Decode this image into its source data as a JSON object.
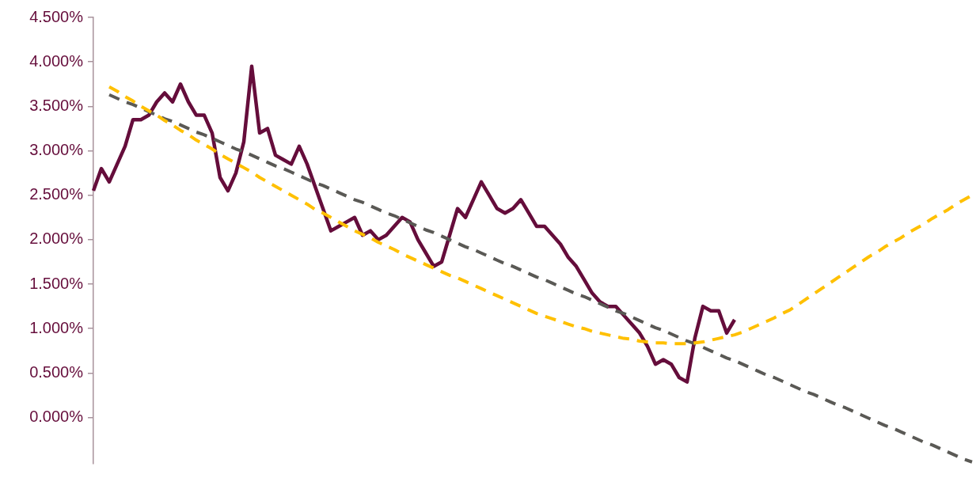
{
  "chart_data": {
    "type": "line",
    "categories": [
      null,
      null,
      null,
      null,
      null,
      null,
      null,
      null,
      null,
      null,
      null,
      null,
      null,
      null,
      null,
      null,
      null,
      null,
      null,
      null,
      null,
      null,
      null,
      null,
      null,
      null,
      null,
      null,
      null,
      null,
      null,
      null,
      null,
      null,
      null,
      null,
      null,
      null,
      null,
      null,
      null,
      null,
      null,
      null,
      null,
      null,
      null,
      null,
      null,
      null,
      null,
      null,
      null,
      null,
      null,
      null,
      null,
      null,
      null,
      null,
      null,
      null,
      null,
      null,
      null,
      null,
      null,
      null,
      null,
      null,
      null,
      null,
      null,
      null,
      null,
      null,
      null,
      null,
      null,
      null,
      null,
      null,
      null,
      null,
      null,
      null,
      null,
      null,
      null,
      null,
      null,
      null,
      null,
      null,
      null,
      null,
      null,
      null,
      null,
      null,
      null,
      null,
      null,
      null,
      null,
      null,
      null,
      null,
      null,
      null,
      null,
      null
    ],
    "ylim": [
      -0.52,
      4.5
    ],
    "yticks": [
      {
        "value": 0,
        "label": "0.000%"
      },
      {
        "value": 0.5,
        "label": "0.500%"
      },
      {
        "value": 1,
        "label": "1.000%"
      },
      {
        "value": 1.5,
        "label": "1.500%"
      },
      {
        "value": 2,
        "label": "2.000%"
      },
      {
        "value": 2.5,
        "label": "2.500%"
      },
      {
        "value": 3,
        "label": "3.000%"
      },
      {
        "value": 3.5,
        "label": "3.500%"
      },
      {
        "value": 4,
        "label": "4.000%"
      },
      {
        "value": 4.5,
        "label": "4.500%"
      }
    ],
    "grid": false,
    "legend": false,
    "marker": "none",
    "series": [
      {
        "color": "#650d3b",
        "line_style": "solid",
        "values": [
          2.55,
          2.8,
          2.65,
          2.85,
          3.05,
          3.35,
          3.35,
          3.4,
          3.55,
          3.65,
          3.55,
          3.75,
          3.55,
          3.4,
          3.4,
          3.2,
          2.7,
          2.55,
          2.75,
          3.1,
          3.95,
          3.2,
          3.25,
          2.95,
          2.9,
          2.85,
          3.05,
          2.85,
          2.6,
          2.35,
          2.1,
          2.15,
          2.2,
          2.25,
          2.05,
          2.1,
          2.0,
          2.05,
          2.15,
          2.25,
          2.2,
          2.0,
          1.85,
          1.7,
          1.75,
          2.05,
          2.35,
          2.25,
          2.45,
          2.65,
          2.5,
          2.35,
          2.3,
          2.35,
          2.45,
          2.3,
          2.15,
          2.15,
          2.05,
          1.95,
          1.8,
          1.7,
          1.55,
          1.4,
          1.3,
          1.25,
          1.25,
          1.15,
          1.05,
          0.95,
          0.8,
          0.6,
          0.65,
          0.6,
          0.45,
          0.4,
          0.9,
          1.25,
          1.2,
          1.2,
          0.95,
          1.1,
          null,
          null,
          null,
          null,
          null,
          null,
          null,
          null,
          null,
          null,
          null,
          null,
          null,
          null,
          null,
          null,
          null,
          null,
          null,
          null,
          null,
          null,
          null,
          null,
          null,
          null,
          null,
          null,
          null,
          null
        ]
      },
      {
        "color": "#5a5955",
        "line_style": "dashed",
        "values": [
          null,
          null,
          3.63,
          3.59,
          3.55,
          3.52,
          3.48,
          3.44,
          3.4,
          3.36,
          3.33,
          3.29,
          3.25,
          3.21,
          3.18,
          3.14,
          3.1,
          3.06,
          3.02,
          2.99,
          2.95,
          2.91,
          2.87,
          2.83,
          2.8,
          2.76,
          2.72,
          2.68,
          2.64,
          2.61,
          2.57,
          2.53,
          2.49,
          2.45,
          2.42,
          2.38,
          2.34,
          2.3,
          2.27,
          2.23,
          2.19,
          2.15,
          2.11,
          2.08,
          2.04,
          2.0,
          1.96,
          1.92,
          1.89,
          1.85,
          1.81,
          1.77,
          1.73,
          1.7,
          1.66,
          1.62,
          1.58,
          1.55,
          1.51,
          1.47,
          1.43,
          1.39,
          1.36,
          1.32,
          1.28,
          1.24,
          1.2,
          1.17,
          1.13,
          1.09,
          1.05,
          1.01,
          0.98,
          0.94,
          0.9,
          0.86,
          0.83,
          0.79,
          0.75,
          0.71,
          0.67,
          0.64,
          0.6,
          0.56,
          0.52,
          0.48,
          0.45,
          0.41,
          0.37,
          0.33,
          0.29,
          0.26,
          0.22,
          0.18,
          0.14,
          0.11,
          0.07,
          0.03,
          -0.01,
          -0.05,
          -0.09,
          -0.12,
          -0.16,
          -0.2,
          -0.24,
          -0.28,
          -0.31,
          -0.35,
          -0.39,
          -0.43,
          -0.47,
          -0.5
        ]
      },
      {
        "color": "#ffc000",
        "line_style": "dashed",
        "values": [
          null,
          null,
          3.72,
          3.67,
          3.61,
          3.56,
          3.5,
          3.45,
          3.4,
          3.34,
          3.29,
          3.23,
          3.18,
          3.12,
          3.07,
          3.02,
          2.96,
          2.91,
          2.86,
          2.81,
          2.76,
          2.7,
          2.65,
          2.6,
          2.55,
          2.5,
          2.45,
          2.4,
          2.34,
          2.3,
          2.25,
          2.2,
          2.15,
          2.1,
          2.06,
          2.02,
          1.97,
          1.93,
          1.89,
          1.84,
          1.8,
          1.76,
          1.72,
          1.68,
          1.64,
          1.6,
          1.57,
          1.53,
          1.49,
          1.45,
          1.41,
          1.37,
          1.33,
          1.29,
          1.25,
          1.21,
          1.17,
          1.14,
          1.11,
          1.08,
          1.05,
          1.02,
          1.0,
          0.97,
          0.95,
          0.93,
          0.91,
          0.89,
          0.88,
          0.86,
          0.85,
          0.84,
          0.84,
          0.83,
          0.83,
          0.83,
          0.84,
          0.85,
          0.87,
          0.89,
          0.91,
          0.93,
          0.96,
          1.0,
          1.04,
          1.08,
          1.12,
          1.17,
          1.21,
          1.27,
          1.33,
          1.39,
          1.45,
          1.51,
          1.57,
          1.63,
          1.69,
          1.75,
          1.81,
          1.86,
          1.92,
          1.97,
          2.02,
          2.08,
          2.13,
          2.18,
          2.24,
          2.29,
          2.34,
          2.4,
          2.45,
          2.5
        ]
      }
    ]
  }
}
